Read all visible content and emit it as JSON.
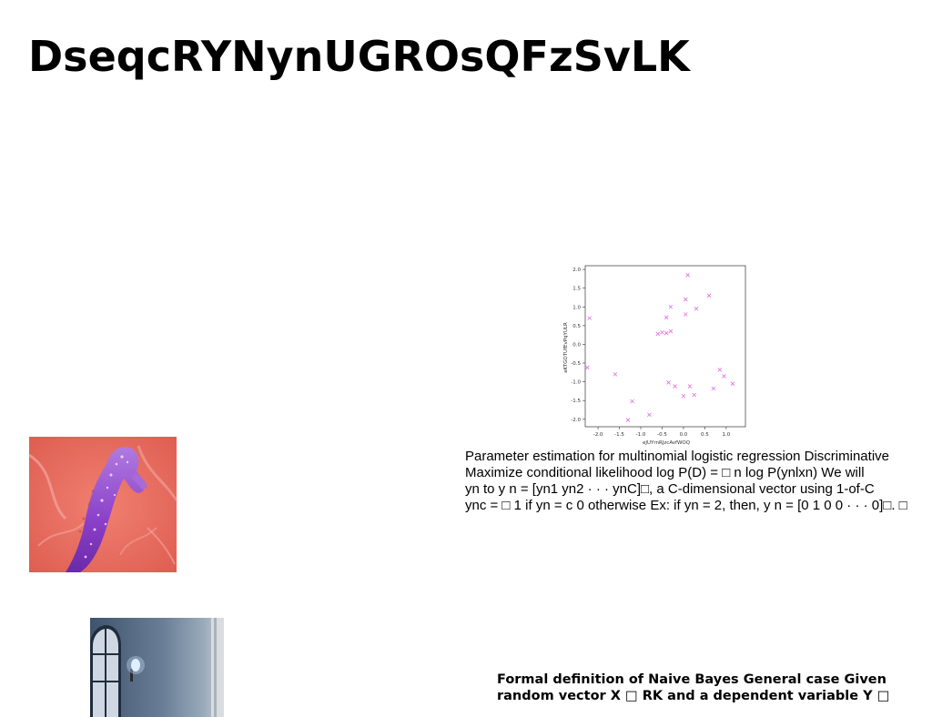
{
  "title": "DseqcRYNynUGROsQFzSvLK",
  "text_block_1": {
    "lines": [
      "Parameter estimation for multinomial logistic regression Discriminative",
      "Maximize conditional likelihood log P(D) = □ n log P(ynlxn) We will",
      "yn to y n = [yn1 yn2 · · · ynC]□, a C-dimensional vector using 1-of-C",
      "ync = □ 1 if yn = c 0 otherwise Ex: if yn = 2, then, y n = [0 1 0 0 · · · 0]□. □"
    ]
  },
  "text_block_2": {
    "lines": [
      "Formal definition of Naive Bayes General case Given",
      "random vector X □ RK and a dependent variable Y □"
    ]
  },
  "chart_data": {
    "type": "scatter",
    "xlabel": "eJUYrnRJzcAvfWOQ",
    "ylabel": "aKTGOTUfEvPqYULR",
    "xlim": [
      -2.3,
      1.45
    ],
    "ylim": [
      -2.2,
      2.1
    ],
    "xticks": [
      "-2.0",
      "-1.5",
      "-1.0",
      "-0.5",
      "0.0",
      "0.5",
      "1.0"
    ],
    "yticks": [
      "2.0",
      "1.5",
      "1.0",
      "0.5",
      "0.0",
      "-0.5",
      "-1.0",
      "-1.5",
      "-2.0"
    ],
    "marker": "x",
    "color": "#e36fe3",
    "grid": false,
    "points": [
      {
        "x": 0.1,
        "y": 1.85
      },
      {
        "x": 0.6,
        "y": 1.3
      },
      {
        "x": 0.05,
        "y": 1.2
      },
      {
        "x": -0.3,
        "y": 1.0
      },
      {
        "x": 0.3,
        "y": 0.95
      },
      {
        "x": -0.4,
        "y": 0.72
      },
      {
        "x": 0.05,
        "y": 0.8
      },
      {
        "x": -2.2,
        "y": 0.7
      },
      {
        "x": -0.6,
        "y": 0.28
      },
      {
        "x": -0.5,
        "y": 0.32
      },
      {
        "x": -0.4,
        "y": 0.3
      },
      {
        "x": -0.3,
        "y": 0.35
      },
      {
        "x": -2.25,
        "y": -0.62
      },
      {
        "x": -1.6,
        "y": -0.8
      },
      {
        "x": 0.85,
        "y": -0.68
      },
      {
        "x": 0.95,
        "y": -0.85
      },
      {
        "x": 1.15,
        "y": -1.05
      },
      {
        "x": -0.35,
        "y": -1.02
      },
      {
        "x": -0.2,
        "y": -1.12
      },
      {
        "x": 0.15,
        "y": -1.12
      },
      {
        "x": 0.7,
        "y": -1.18
      },
      {
        "x": 0.0,
        "y": -1.38
      },
      {
        "x": 0.25,
        "y": -1.35
      },
      {
        "x": -1.2,
        "y": -1.52
      },
      {
        "x": -0.8,
        "y": -1.88
      },
      {
        "x": -1.3,
        "y": -2.02
      }
    ]
  },
  "images": {
    "photo_1": "seahorse-photo",
    "photo_2": "interior-room-photo"
  }
}
